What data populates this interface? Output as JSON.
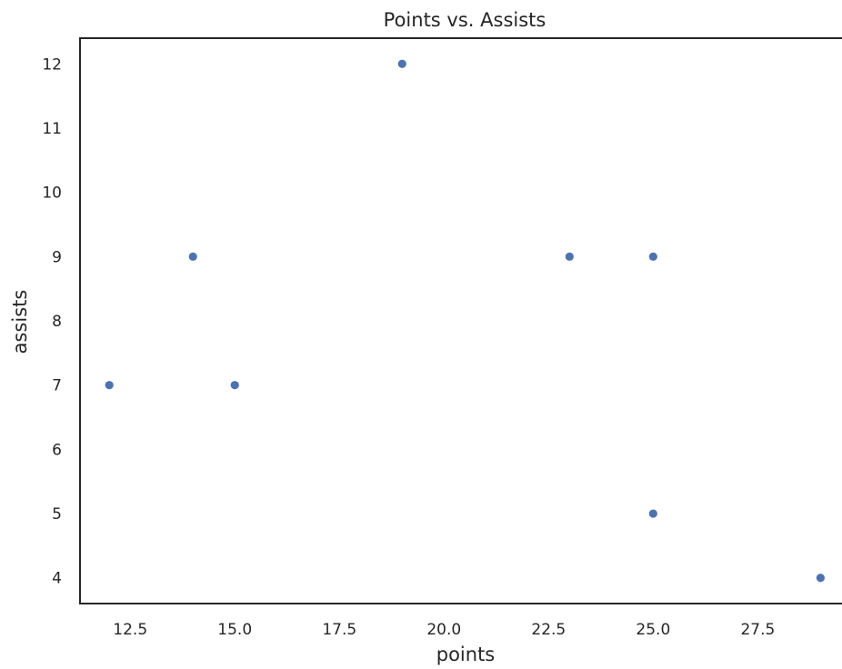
{
  "chart_data": {
    "type": "scatter",
    "title": "Points vs. Assists",
    "xlabel": "points",
    "ylabel": "assists",
    "x_ticks": [
      "12.5",
      "15.0",
      "17.5",
      "20.0",
      "22.5",
      "25.0",
      "27.5"
    ],
    "y_ticks": [
      "4",
      "5",
      "6",
      "7",
      "8",
      "9",
      "10",
      "11",
      "12"
    ],
    "xlim": [
      11.3,
      29.6
    ],
    "ylim": [
      3.6,
      12.4
    ],
    "grid": false,
    "marker_color": "#4c72b0",
    "points": [
      {
        "x": 12,
        "y": 7
      },
      {
        "x": 14,
        "y": 9
      },
      {
        "x": 15,
        "y": 7
      },
      {
        "x": 19,
        "y": 12
      },
      {
        "x": 23,
        "y": 9
      },
      {
        "x": 25,
        "y": 9
      },
      {
        "x": 25,
        "y": 5
      },
      {
        "x": 29,
        "y": 4
      }
    ]
  }
}
